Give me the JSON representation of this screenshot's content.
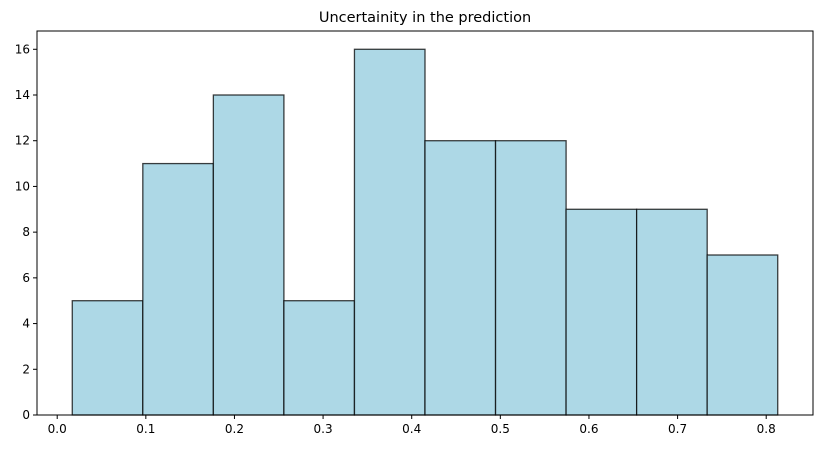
{
  "chart_data": {
    "type": "bar",
    "title": "Uncertainity in the prediction",
    "xlabel": "",
    "ylabel": "",
    "bins": [
      {
        "x0": 0.017,
        "x1": 0.0966,
        "count": 5
      },
      {
        "x0": 0.0966,
        "x1": 0.1762,
        "count": 11
      },
      {
        "x0": 0.1762,
        "x1": 0.2558,
        "count": 14
      },
      {
        "x0": 0.2558,
        "x1": 0.3354,
        "count": 5
      },
      {
        "x0": 0.3354,
        "x1": 0.415,
        "count": 16
      },
      {
        "x0": 0.415,
        "x1": 0.4946,
        "count": 12
      },
      {
        "x0": 0.4946,
        "x1": 0.5742,
        "count": 12
      },
      {
        "x0": 0.5742,
        "x1": 0.6538,
        "count": 9
      },
      {
        "x0": 0.6538,
        "x1": 0.7334,
        "count": 9
      },
      {
        "x0": 0.7334,
        "x1": 0.813,
        "count": 7
      }
    ],
    "xlim": [
      -0.0228,
      0.8528
    ],
    "ylim": [
      0,
      16.8
    ],
    "xticks": [
      0.0,
      0.1,
      0.2,
      0.3,
      0.4,
      0.5,
      0.6,
      0.7,
      0.8
    ],
    "xtick_labels": [
      "0.0",
      "0.1",
      "0.2",
      "0.3",
      "0.4",
      "0.5",
      "0.6",
      "0.7",
      "0.8"
    ],
    "yticks": [
      0,
      2,
      4,
      6,
      8,
      10,
      12,
      14,
      16
    ],
    "ytick_labels": [
      "0",
      "2",
      "4",
      "6",
      "8",
      "10",
      "12",
      "14",
      "16"
    ],
    "grid": false,
    "colors": {
      "bar_fill": "#ADD8E6",
      "bar_edge": "#000000"
    }
  }
}
